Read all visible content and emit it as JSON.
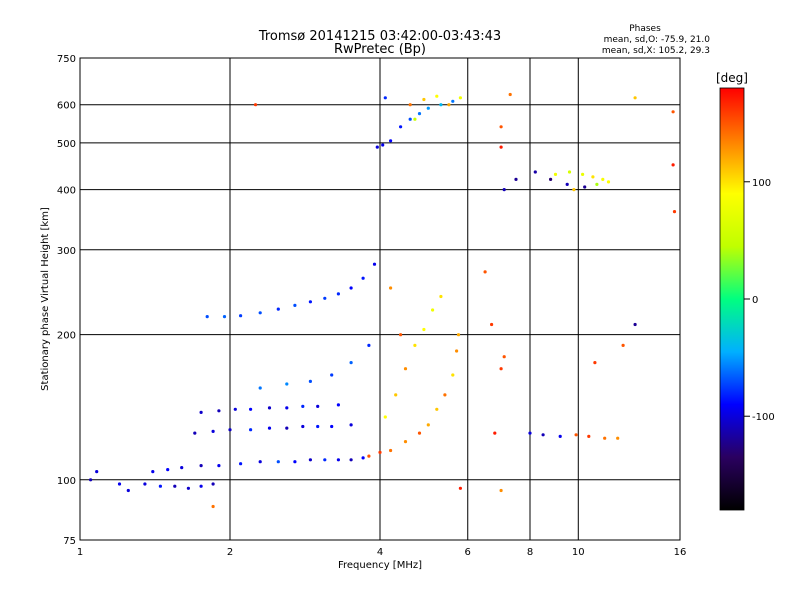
{
  "chart_data": {
    "type": "scatter",
    "title": "Tromsø 20141215 03:42:00-03:43:43",
    "subtitle": "RwPretec (Bp)",
    "xlabel": "Frequency [MHz]",
    "ylabel": "Stationary phase Virtual Height [km]",
    "x_scale": "log",
    "y_scale": "log",
    "xlim": [
      1,
      16
    ],
    "ylim": [
      75,
      750
    ],
    "x_ticks": [
      1,
      2,
      4,
      6,
      8,
      10,
      16
    ],
    "y_ticks": [
      75,
      100,
      200,
      300,
      400,
      500,
      600,
      750
    ],
    "grid": true,
    "phases_title": "Phases",
    "phases_o": "mean, sd,O: -75.9, 21.0",
    "phases_x": "mean, sd,X: 105.2, 29.3",
    "colorbar": {
      "label": "[deg]",
      "range": [
        -180,
        180
      ],
      "ticks": [
        100,
        0,
        -100
      ],
      "colormap": [
        "#000000",
        "#2a0060",
        "#0000ff",
        "#00b0ff",
        "#00ff80",
        "#c0ff00",
        "#ffff00",
        "#ff8000",
        "#ff0000"
      ]
    },
    "series": [
      {
        "values": [
          {
            "x": 1.05,
            "y": 100,
            "phase": -110
          },
          {
            "x": 1.08,
            "y": 104,
            "phase": -100
          },
          {
            "x": 1.2,
            "y": 98,
            "phase": -95
          },
          {
            "x": 1.35,
            "y": 98,
            "phase": -100
          },
          {
            "x": 1.45,
            "y": 97,
            "phase": -85
          },
          {
            "x": 1.55,
            "y": 97,
            "phase": -110
          },
          {
            "x": 1.65,
            "y": 96,
            "phase": -105
          },
          {
            "x": 1.75,
            "y": 97,
            "phase": -95
          },
          {
            "x": 1.85,
            "y": 98,
            "phase": -110
          },
          {
            "x": 1.4,
            "y": 104,
            "phase": -95
          },
          {
            "x": 1.5,
            "y": 105,
            "phase": -90
          },
          {
            "x": 1.6,
            "y": 106,
            "phase": -100
          },
          {
            "x": 1.75,
            "y": 107,
            "phase": -110
          },
          {
            "x": 1.9,
            "y": 107,
            "phase": -95
          },
          {
            "x": 2.1,
            "y": 108,
            "phase": -85
          },
          {
            "x": 2.3,
            "y": 109,
            "phase": -100
          },
          {
            "x": 2.5,
            "y": 109,
            "phase": -70
          },
          {
            "x": 2.7,
            "y": 109,
            "phase": -90
          },
          {
            "x": 2.9,
            "y": 110,
            "phase": -105
          },
          {
            "x": 3.1,
            "y": 110,
            "phase": -80
          },
          {
            "x": 3.3,
            "y": 110,
            "phase": -95
          },
          {
            "x": 3.5,
            "y": 110,
            "phase": -110
          },
          {
            "x": 3.7,
            "y": 111,
            "phase": -90
          },
          {
            "x": 1.7,
            "y": 125,
            "phase": -110
          },
          {
            "x": 1.85,
            "y": 126,
            "phase": -100
          },
          {
            "x": 2.0,
            "y": 127,
            "phase": -105
          },
          {
            "x": 2.2,
            "y": 127,
            "phase": -80
          },
          {
            "x": 2.4,
            "y": 128,
            "phase": -95
          },
          {
            "x": 2.6,
            "y": 128,
            "phase": -110
          },
          {
            "x": 2.8,
            "y": 129,
            "phase": -100
          },
          {
            "x": 3.0,
            "y": 129,
            "phase": -85
          },
          {
            "x": 3.2,
            "y": 129,
            "phase": -90
          },
          {
            "x": 3.5,
            "y": 130,
            "phase": -100
          },
          {
            "x": 1.75,
            "y": 138,
            "phase": -105
          },
          {
            "x": 1.9,
            "y": 139,
            "phase": -110
          },
          {
            "x": 2.05,
            "y": 140,
            "phase": -100
          },
          {
            "x": 2.2,
            "y": 140,
            "phase": -90
          },
          {
            "x": 2.4,
            "y": 141,
            "phase": -105
          },
          {
            "x": 2.6,
            "y": 141,
            "phase": -95
          },
          {
            "x": 2.8,
            "y": 142,
            "phase": -80
          },
          {
            "x": 3.0,
            "y": 142,
            "phase": -100
          },
          {
            "x": 3.3,
            "y": 143,
            "phase": -90
          },
          {
            "x": 2.3,
            "y": 155,
            "phase": -60
          },
          {
            "x": 2.6,
            "y": 158,
            "phase": -55
          },
          {
            "x": 2.9,
            "y": 160,
            "phase": -70
          },
          {
            "x": 3.2,
            "y": 165,
            "phase": -75
          },
          {
            "x": 3.5,
            "y": 175,
            "phase": -65
          },
          {
            "x": 3.8,
            "y": 190,
            "phase": -80
          },
          {
            "x": 1.8,
            "y": 218,
            "phase": -70
          },
          {
            "x": 1.95,
            "y": 218,
            "phase": -65
          },
          {
            "x": 2.1,
            "y": 219,
            "phase": -75
          },
          {
            "x": 2.3,
            "y": 222,
            "phase": -70
          },
          {
            "x": 2.5,
            "y": 226,
            "phase": -80
          },
          {
            "x": 2.7,
            "y": 230,
            "phase": -70
          },
          {
            "x": 2.9,
            "y": 234,
            "phase": -85
          },
          {
            "x": 3.1,
            "y": 238,
            "phase": -75
          },
          {
            "x": 3.3,
            "y": 243,
            "phase": -80
          },
          {
            "x": 3.5,
            "y": 250,
            "phase": -90
          },
          {
            "x": 3.7,
            "y": 262,
            "phase": -85
          },
          {
            "x": 3.9,
            "y": 280,
            "phase": -95
          },
          {
            "x": 3.95,
            "y": 490,
            "phase": -100
          },
          {
            "x": 4.05,
            "y": 495,
            "phase": -95
          },
          {
            "x": 4.2,
            "y": 505,
            "phase": -90
          },
          {
            "x": 4.4,
            "y": 540,
            "phase": -85
          },
          {
            "x": 4.6,
            "y": 560,
            "phase": -70
          },
          {
            "x": 4.8,
            "y": 575,
            "phase": -60
          },
          {
            "x": 5.0,
            "y": 590,
            "phase": -50
          },
          {
            "x": 5.3,
            "y": 600,
            "phase": -40
          },
          {
            "x": 5.6,
            "y": 610,
            "phase": -60
          },
          {
            "x": 4.1,
            "y": 620,
            "phase": -80
          },
          {
            "x": 7.1,
            "y": 400,
            "phase": -110
          },
          {
            "x": 7.5,
            "y": 420,
            "phase": -120
          },
          {
            "x": 8.2,
            "y": 435,
            "phase": -115
          },
          {
            "x": 8.8,
            "y": 420,
            "phase": -130
          },
          {
            "x": 9.5,
            "y": 410,
            "phase": -110
          },
          {
            "x": 10.3,
            "y": 405,
            "phase": -120
          },
          {
            "x": 8.0,
            "y": 125,
            "phase": -100
          },
          {
            "x": 8.5,
            "y": 124,
            "phase": -110
          },
          {
            "x": 9.2,
            "y": 123,
            "phase": -95
          },
          {
            "x": 13.0,
            "y": 210,
            "phase": -120
          },
          {
            "x": 1.25,
            "y": 95,
            "phase": -100
          }
        ]
      },
      {
        "values": [
          {
            "x": 3.8,
            "y": 112,
            "phase": 150
          },
          {
            "x": 4.0,
            "y": 114,
            "phase": 160
          },
          {
            "x": 4.2,
            "y": 115,
            "phase": 140
          },
          {
            "x": 4.5,
            "y": 120,
            "phase": 130
          },
          {
            "x": 4.8,
            "y": 125,
            "phase": 150
          },
          {
            "x": 5.0,
            "y": 130,
            "phase": 120
          },
          {
            "x": 5.2,
            "y": 140,
            "phase": 110
          },
          {
            "x": 5.4,
            "y": 150,
            "phase": 140
          },
          {
            "x": 5.6,
            "y": 165,
            "phase": 100
          },
          {
            "x": 5.7,
            "y": 185,
            "phase": 130
          },
          {
            "x": 5.75,
            "y": 200,
            "phase": 120
          },
          {
            "x": 4.1,
            "y": 135,
            "phase": 90
          },
          {
            "x": 4.3,
            "y": 150,
            "phase": 110
          },
          {
            "x": 4.5,
            "y": 170,
            "phase": 130
          },
          {
            "x": 4.7,
            "y": 190,
            "phase": 100
          },
          {
            "x": 4.9,
            "y": 205,
            "phase": 90
          },
          {
            "x": 5.1,
            "y": 225,
            "phase": 80
          },
          {
            "x": 5.3,
            "y": 240,
            "phase": 100
          },
          {
            "x": 4.2,
            "y": 250,
            "phase": 130
          },
          {
            "x": 4.4,
            "y": 200,
            "phase": 150
          },
          {
            "x": 4.6,
            "y": 600,
            "phase": 140
          },
          {
            "x": 4.9,
            "y": 615,
            "phase": 110
          },
          {
            "x": 5.2,
            "y": 625,
            "phase": 90
          },
          {
            "x": 5.5,
            "y": 600,
            "phase": 120
          },
          {
            "x": 5.8,
            "y": 620,
            "phase": 80
          },
          {
            "x": 4.7,
            "y": 560,
            "phase": 50
          },
          {
            "x": 7.0,
            "y": 540,
            "phase": 150
          },
          {
            "x": 7.0,
            "y": 490,
            "phase": 170
          },
          {
            "x": 9.0,
            "y": 430,
            "phase": 80
          },
          {
            "x": 9.6,
            "y": 435,
            "phase": 60
          },
          {
            "x": 10.2,
            "y": 430,
            "phase": 75
          },
          {
            "x": 10.7,
            "y": 425,
            "phase": 100
          },
          {
            "x": 11.2,
            "y": 420,
            "phase": 85
          },
          {
            "x": 11.5,
            "y": 415,
            "phase": 90
          },
          {
            "x": 10.9,
            "y": 410,
            "phase": 40
          },
          {
            "x": 9.8,
            "y": 400,
            "phase": 110
          },
          {
            "x": 7.0,
            "y": 170,
            "phase": 160
          },
          {
            "x": 7.1,
            "y": 180,
            "phase": 150
          },
          {
            "x": 6.8,
            "y": 125,
            "phase": 170
          },
          {
            "x": 9.9,
            "y": 124,
            "phase": 150
          },
          {
            "x": 10.5,
            "y": 123,
            "phase": 160
          },
          {
            "x": 11.3,
            "y": 122,
            "phase": 140
          },
          {
            "x": 12.0,
            "y": 122,
            "phase": 130
          },
          {
            "x": 10.8,
            "y": 175,
            "phase": 160
          },
          {
            "x": 12.3,
            "y": 190,
            "phase": 150
          },
          {
            "x": 7.3,
            "y": 630,
            "phase": 140
          },
          {
            "x": 13.0,
            "y": 620,
            "phase": 110
          },
          {
            "x": 15.5,
            "y": 580,
            "phase": 150
          },
          {
            "x": 15.5,
            "y": 450,
            "phase": 170
          },
          {
            "x": 15.6,
            "y": 360,
            "phase": 160
          },
          {
            "x": 6.5,
            "y": 270,
            "phase": 150
          },
          {
            "x": 6.7,
            "y": 210,
            "phase": 160
          },
          {
            "x": 1.85,
            "y": 88,
            "phase": 140
          },
          {
            "x": 2.25,
            "y": 600,
            "phase": 160
          },
          {
            "x": 5.8,
            "y": 96,
            "phase": 170
          },
          {
            "x": 7.0,
            "y": 95,
            "phase": 130
          }
        ]
      }
    ]
  }
}
